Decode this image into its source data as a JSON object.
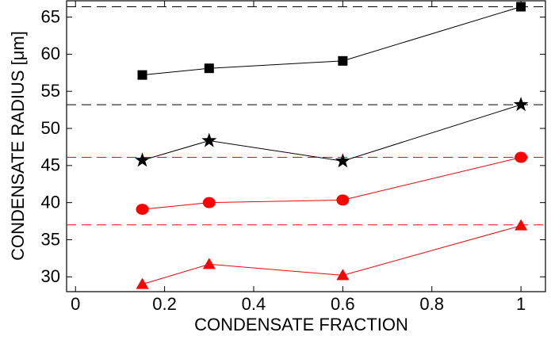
{
  "chart_data": {
    "type": "line",
    "x_label": "CONDENSATE FRACTION",
    "y_label": "CONDENSATE RADIUS [μm]",
    "x": [
      0.15,
      0.3,
      0.6,
      1
    ],
    "series": [
      {
        "marker": "square",
        "color": "#000000",
        "values": [
          57.2,
          58.1,
          59.1,
          66.4
        ]
      },
      {
        "marker": "star",
        "color": "#000000",
        "values": [
          45.7,
          48.35,
          45.6,
          53.2
        ]
      },
      {
        "marker": "circle",
        "color": "#ff0000",
        "values": [
          39.1,
          40.0,
          40.35,
          46.1
        ]
      },
      {
        "marker": "triangle",
        "color": "#ff0000",
        "values": [
          29.0,
          31.7,
          30.2,
          36.9
        ]
      }
    ],
    "reference_lines": [
      {
        "value": 66.4,
        "color": "#000000"
      },
      {
        "value": 53.2,
        "color": "#000000"
      },
      {
        "value": 46.1,
        "color": "#ff0000"
      },
      {
        "value": 37.0,
        "color": "#ff0000"
      }
    ],
    "xlim": [
      -0.02,
      1.055
    ],
    "ylim": [
      28,
      67.2
    ],
    "xticks": [
      0,
      0.2,
      0.4,
      0.6,
      0.8,
      1
    ],
    "yticks": [
      30,
      35,
      40,
      45,
      50,
      55,
      60,
      65
    ]
  }
}
